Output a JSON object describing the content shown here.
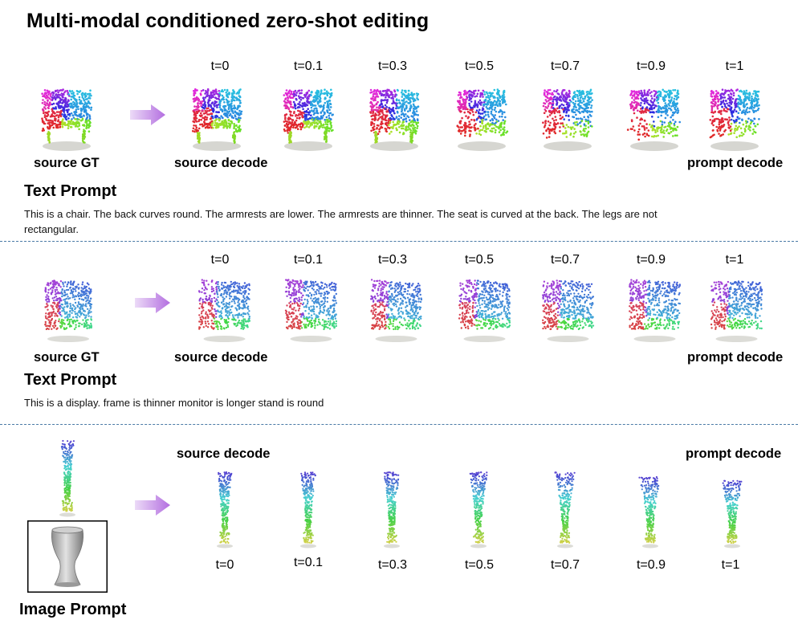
{
  "title": "Multi-modal conditioned zero-shot editing",
  "time_steps": [
    "t=0",
    "t=0.1",
    "t=0.3",
    "t=0.5",
    "t=0.7",
    "t=0.9",
    "t=1"
  ],
  "labels": {
    "source_gt": "source GT",
    "source_decode": "source decode",
    "prompt_decode": "prompt decode"
  },
  "rows": [
    {
      "id": "chair",
      "prompt_heading": "Text Prompt",
      "prompt_text": "This is a chair. The back curves round. The armrests are lower. The armrests are thinner. The seat is curved at the back. The legs are not rectangular."
    },
    {
      "id": "display",
      "prompt_heading": "Text Prompt",
      "prompt_text": "This is a display. frame is thinner monitor is longer stand is round"
    },
    {
      "id": "vase",
      "prompt_heading": "Image Prompt"
    }
  ],
  "colors": {
    "arrow": "#b36ee0",
    "divider": "#4a7aa6"
  }
}
